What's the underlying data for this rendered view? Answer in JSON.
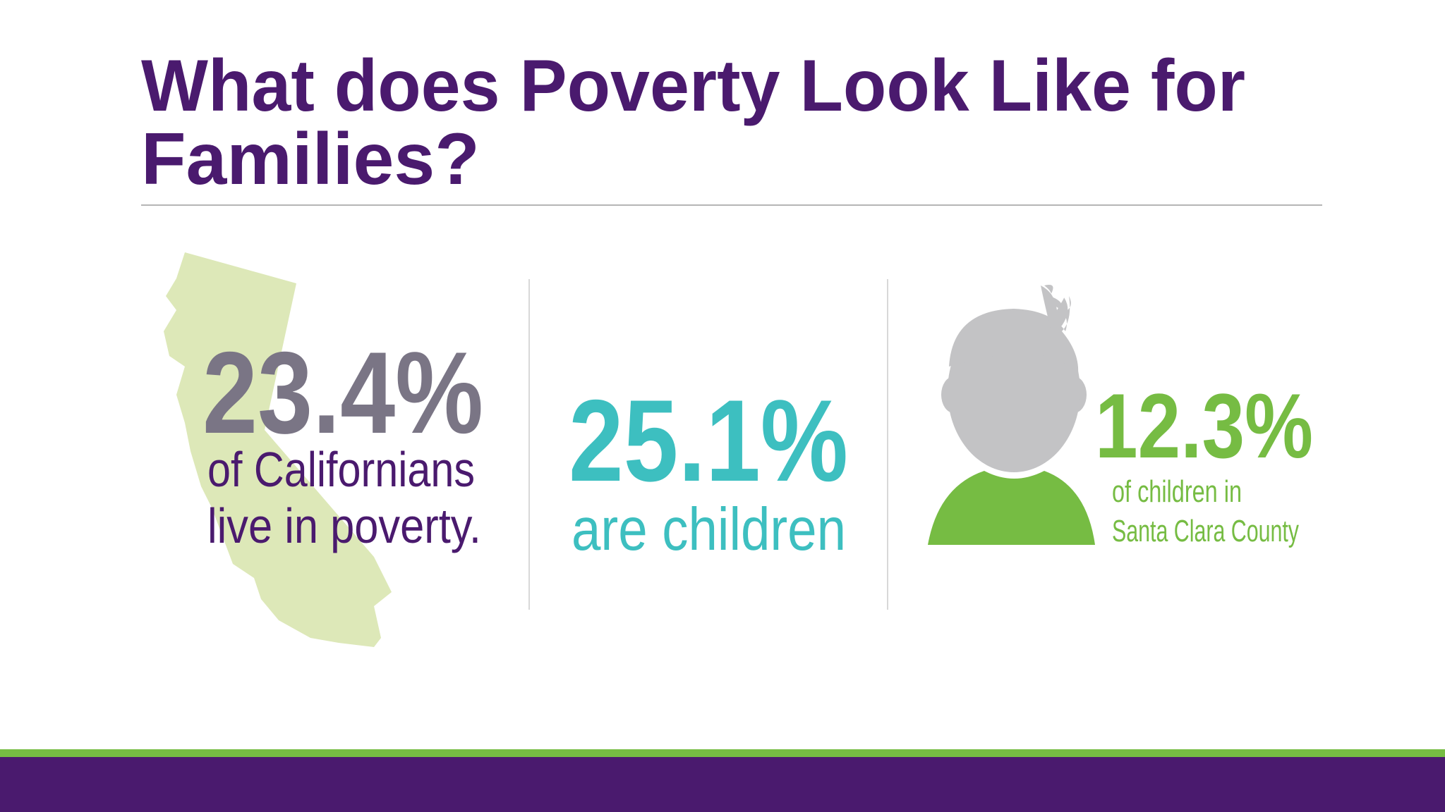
{
  "header": {
    "title_lines": [
      "What does Poverty Look Like for",
      "Families?"
    ]
  },
  "stats": [
    {
      "figure": "23.4%",
      "caption_lines": [
        "of Californians",
        "live in poverty."
      ]
    },
    {
      "figure": "25.1%",
      "caption_lines": [
        "are children"
      ]
    },
    {
      "figure": "12.3%",
      "caption_lines": [
        "of children in",
        "Santa Clara County"
      ]
    }
  ]
}
